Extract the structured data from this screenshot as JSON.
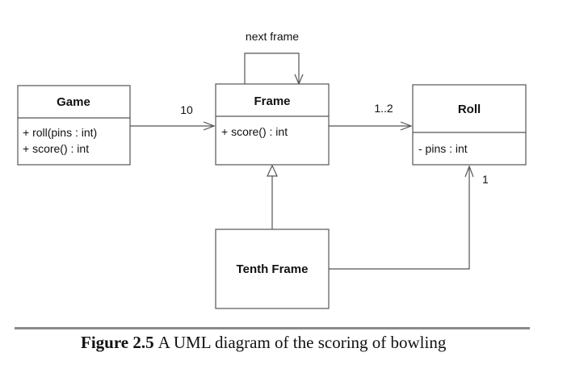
{
  "classes": {
    "game": {
      "name": "Game",
      "members": [
        "+ roll(pins : int)",
        "+ score() : int"
      ]
    },
    "frame": {
      "name": "Frame",
      "members": [
        "+ score() : int"
      ]
    },
    "roll": {
      "name": "Roll",
      "members": [
        "- pins : int"
      ]
    },
    "tenth": {
      "name": "Tenth Frame",
      "members": []
    }
  },
  "associations": {
    "game_frame": "10",
    "frame_roll": "1..2",
    "self_frame": "next frame",
    "tenth_roll": "1"
  },
  "caption": {
    "label": "Figure 2.5",
    "text": "A UML diagram of the scoring of bowling"
  }
}
